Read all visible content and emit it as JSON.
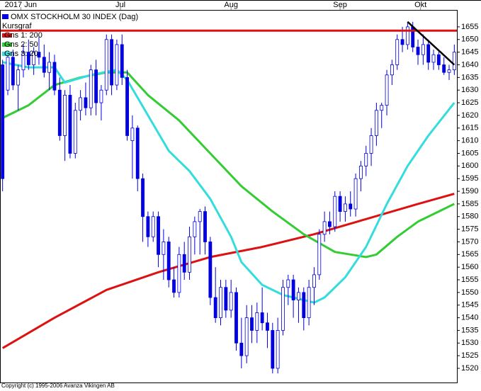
{
  "chart_data": {
    "type": "candlestick",
    "title": "OMX STOCKHOLM 30 INDEX (Dag)",
    "copyright": "Copyright (c) 1995-2006 Avanza Vikingen AB",
    "xlim": [
      -0.5,
      87.5
    ],
    "xticks": [
      {
        "value": 3.5,
        "label": "2017 Jun"
      },
      {
        "value": 22.7,
        "label": "Jul"
      },
      {
        "value": 44,
        "label": "Aug"
      },
      {
        "value": 65,
        "label": "Sep"
      },
      {
        "value": 80.5,
        "label": "Okt"
      }
    ],
    "ylim": [
      1514.4,
      1661.7
    ],
    "yticks": [
      1520,
      1525,
      1530,
      1535,
      1540,
      1545,
      1550,
      1555,
      1560,
      1565,
      1570,
      1575,
      1580,
      1585,
      1590,
      1595,
      1600,
      1605,
      1610,
      1615,
      1620,
      1625,
      1630,
      1635,
      1640,
      1645,
      1650,
      1655
    ],
    "hline": {
      "value": 1653.5,
      "color": "#dd1111"
    },
    "trendline": {
      "x": [
        78,
        87
      ],
      "values": [
        1657,
        1640
      ],
      "color": "#000000"
    },
    "series": [
      {
        "name": "Kursgraf",
        "color": "#0000e0",
        "up_color": "#ffffff",
        "ohlc": [
          [
            1640,
            1642,
            1590,
            1595
          ],
          [
            1630,
            1645,
            1628,
            1643
          ],
          [
            1643,
            1646,
            1630,
            1632
          ],
          [
            1632,
            1640,
            1622,
            1638
          ],
          [
            1638,
            1648,
            1635,
            1645
          ],
          [
            1645,
            1650,
            1638,
            1640
          ],
          [
            1640,
            1647,
            1636,
            1645
          ],
          [
            1645,
            1651,
            1640,
            1643
          ],
          [
            1643,
            1648,
            1635,
            1637
          ],
          [
            1637,
            1645,
            1630,
            1641
          ],
          [
            1641,
            1644,
            1628,
            1630
          ],
          [
            1630,
            1635,
            1610,
            1612
          ],
          [
            1612,
            1630,
            1602,
            1628
          ],
          [
            1628,
            1632,
            1603,
            1605
          ],
          [
            1605,
            1625,
            1603,
            1622
          ],
          [
            1622,
            1630,
            1618,
            1627
          ],
          [
            1627,
            1633,
            1620,
            1623
          ],
          [
            1623,
            1640,
            1620,
            1638
          ],
          [
            1638,
            1642,
            1620,
            1625
          ],
          [
            1625,
            1632,
            1618,
            1630
          ],
          [
            1630,
            1652,
            1628,
            1650
          ],
          [
            1650,
            1652,
            1628,
            1632
          ],
          [
            1632,
            1650,
            1630,
            1648
          ],
          [
            1648,
            1652,
            1632,
            1635
          ],
          [
            1635,
            1638,
            1610,
            1612
          ],
          [
            1610,
            1620,
            1595,
            1615
          ],
          [
            1615,
            1616,
            1590,
            1595
          ],
          [
            1595,
            1597,
            1570,
            1580
          ],
          [
            1580,
            1582,
            1568,
            1572
          ],
          [
            1572,
            1582,
            1570,
            1580
          ],
          [
            1580,
            1582,
            1560,
            1565
          ],
          [
            1565,
            1575,
            1555,
            1570
          ],
          [
            1570,
            1572,
            1552,
            1555
          ],
          [
            1555,
            1560,
            1548,
            1550
          ],
          [
            1550,
            1568,
            1548,
            1565
          ],
          [
            1565,
            1570,
            1555,
            1558
          ],
          [
            1558,
            1576,
            1555,
            1572
          ],
          [
            1572,
            1580,
            1565,
            1578
          ],
          [
            1578,
            1583,
            1565,
            1582
          ],
          [
            1582,
            1584,
            1565,
            1570
          ],
          [
            1570,
            1572,
            1545,
            1548
          ],
          [
            1548,
            1560,
            1538,
            1540
          ],
          [
            1540,
            1555,
            1537,
            1552
          ],
          [
            1552,
            1555,
            1540,
            1543
          ],
          [
            1543,
            1555,
            1540,
            1550
          ],
          [
            1550,
            1552,
            1527,
            1530
          ],
          [
            1530,
            1540,
            1520,
            1525
          ],
          [
            1525,
            1545,
            1522,
            1540
          ],
          [
            1540,
            1545,
            1530,
            1535
          ],
          [
            1535,
            1546,
            1530,
            1542
          ],
          [
            1542,
            1552,
            1535,
            1538
          ],
          [
            1538,
            1542,
            1528,
            1535
          ],
          [
            1535,
            1538,
            1518,
            1520
          ],
          [
            1520,
            1540,
            1518,
            1535
          ],
          [
            1535,
            1555,
            1533,
            1552
          ],
          [
            1552,
            1557,
            1545,
            1555
          ],
          [
            1555,
            1557,
            1540,
            1547
          ],
          [
            1547,
            1552,
            1538,
            1550
          ],
          [
            1550,
            1552,
            1535,
            1540
          ],
          [
            1540,
            1555,
            1537,
            1552
          ],
          [
            1552,
            1560,
            1545,
            1557
          ],
          [
            1557,
            1575,
            1555,
            1573
          ],
          [
            1573,
            1582,
            1570,
            1578
          ],
          [
            1578,
            1582,
            1573,
            1576
          ],
          [
            1576,
            1590,
            1574,
            1588
          ],
          [
            1588,
            1590,
            1578,
            1582
          ],
          [
            1582,
            1588,
            1578,
            1585
          ],
          [
            1585,
            1590,
            1580,
            1583
          ],
          [
            1583,
            1597,
            1580,
            1595
          ],
          [
            1595,
            1602,
            1590,
            1600
          ],
          [
            1600,
            1608,
            1596,
            1605
          ],
          [
            1605,
            1615,
            1600,
            1612
          ],
          [
            1612,
            1625,
            1608,
            1622
          ],
          [
            1622,
            1625,
            1615,
            1624
          ],
          [
            1624,
            1638,
            1620,
            1636
          ],
          [
            1636,
            1642,
            1632,
            1640
          ],
          [
            1640,
            1652,
            1638,
            1650
          ],
          [
            1650,
            1655,
            1645,
            1648
          ],
          [
            1648,
            1657,
            1646,
            1655
          ],
          [
            1655,
            1657,
            1645,
            1647
          ],
          [
            1647,
            1650,
            1640,
            1644
          ],
          [
            1644,
            1652,
            1640,
            1648
          ],
          [
            1648,
            1650,
            1638,
            1641
          ],
          [
            1641,
            1646,
            1638,
            1644
          ],
          [
            1644,
            1646,
            1638,
            1640
          ],
          [
            1640,
            1643,
            1636,
            1637
          ],
          [
            1637,
            1640,
            1634,
            1638
          ],
          [
            1638,
            1648,
            1636,
            1645
          ]
        ]
      },
      {
        "name": "Gns 1: 200",
        "color": "#dd1111",
        "x": [
          0,
          10,
          20,
          30,
          40,
          50,
          60,
          70,
          80,
          87
        ],
        "values": [
          1528,
          1540,
          1551,
          1558,
          1564,
          1568,
          1573,
          1579,
          1585,
          1589
        ]
      },
      {
        "name": "Gns 2: 50",
        "color": "#33cc33",
        "x": [
          0,
          5,
          10,
          15,
          20,
          24,
          28,
          34,
          40,
          46,
          52,
          58,
          64,
          70,
          72,
          76,
          80,
          84,
          87
        ],
        "values": [
          1619,
          1624,
          1632,
          1635,
          1637,
          1637,
          1628,
          1618,
          1605,
          1592,
          1582,
          1573,
          1566,
          1564,
          1565,
          1572,
          1578,
          1582,
          1585
        ]
      },
      {
        "name": "Gns 3: 20",
        "color": "#33dddd",
        "x": [
          0,
          5,
          10,
          12,
          17,
          22,
          24,
          28,
          32,
          36,
          40,
          44,
          46,
          50,
          54,
          58,
          60,
          62,
          66,
          70,
          74,
          78,
          82,
          87
        ],
        "values": [
          1641,
          1639,
          1639,
          1633,
          1636,
          1638,
          1634,
          1620,
          1606,
          1598,
          1587,
          1572,
          1562,
          1553,
          1549,
          1547,
          1546,
          1548,
          1556,
          1568,
          1585,
          1600,
          1612,
          1625
        ]
      }
    ]
  }
}
